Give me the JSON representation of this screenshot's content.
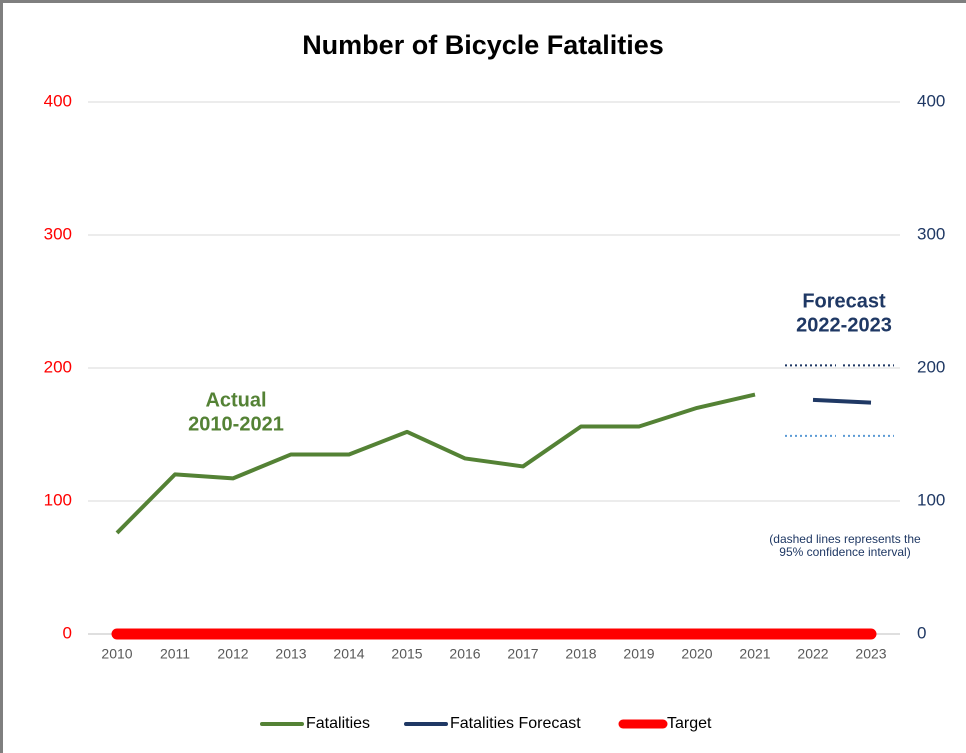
{
  "chart_data": {
    "type": "line",
    "title": "Number of Bicycle Fatalities",
    "categories": [
      "2010",
      "2011",
      "2012",
      "2013",
      "2014",
      "2015",
      "2016",
      "2017",
      "2018",
      "2019",
      "2020",
      "2021",
      "2022",
      "2023"
    ],
    "series": [
      {
        "name": "Fatalities",
        "color": "#548235",
        "values": [
          76,
          120,
          117,
          135,
          135,
          152,
          132,
          126,
          156,
          156,
          170,
          180,
          null,
          null
        ]
      },
      {
        "name": "Fatalities Forecast",
        "color": "#1f3864",
        "axis": "y2",
        "values": [
          null,
          null,
          null,
          null,
          null,
          null,
          null,
          null,
          null,
          null,
          null,
          null,
          176,
          174
        ]
      },
      {
        "name": "Target",
        "color": "#ff0000",
        "values": [
          0,
          0,
          0,
          0,
          0,
          0,
          0,
          0,
          0,
          0,
          0,
          0,
          0,
          0
        ]
      }
    ],
    "confidence_interval": {
      "upper": {
        "color": "#1f3864",
        "values": [
          null,
          null,
          null,
          null,
          null,
          null,
          null,
          null,
          null,
          null,
          null,
          null,
          202,
          202
        ]
      },
      "lower": {
        "color": "#5b9bd5",
        "values": [
          null,
          null,
          null,
          null,
          null,
          null,
          null,
          null,
          null,
          null,
          null,
          null,
          149,
          149
        ]
      }
    },
    "ylim": [
      0,
      400
    ],
    "yticks": [
      0,
      100,
      200,
      300,
      400
    ],
    "ycolor": "#ff0000",
    "y2lim": [
      0,
      400
    ],
    "y2ticks": [
      0,
      100,
      200,
      300,
      400
    ],
    "y2color": "#1f3864",
    "grid": true,
    "legend": "bottom",
    "annotations": [
      {
        "lines": [
          "Actual",
          "2010-2021"
        ],
        "color": "#548235"
      },
      {
        "lines": [
          "Forecast",
          "2022-2023"
        ],
        "color": "#1f3864"
      },
      {
        "lines": [
          "(dashed lines represents the",
          "95% confidence interval)"
        ],
        "color": "#1f3864"
      }
    ]
  }
}
